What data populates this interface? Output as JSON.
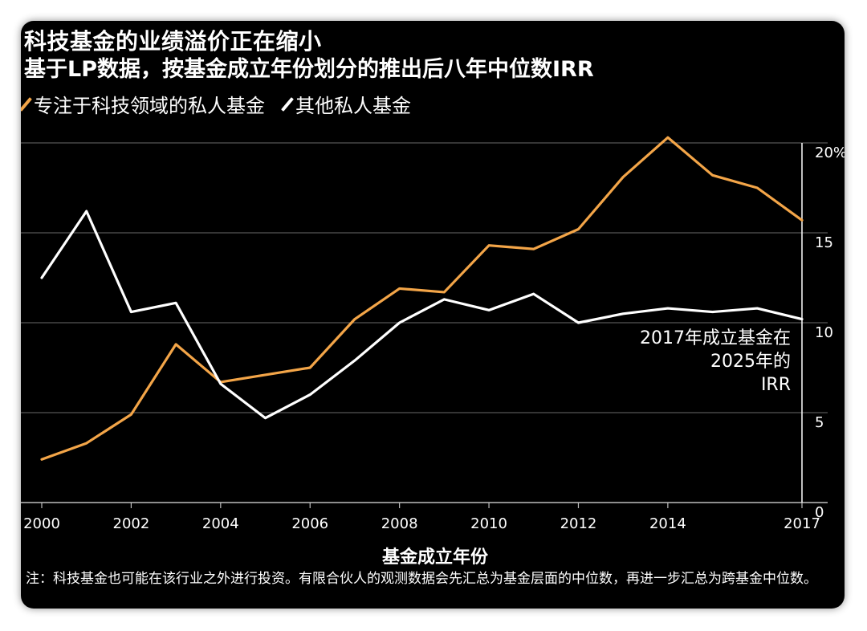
{
  "colors": {
    "tech": "#f3a548",
    "other": "#ffffff",
    "grid": "#6a6a6a",
    "background": "#000000"
  },
  "chart_data": {
    "type": "line",
    "title": "科技基金的业绩溢价正在缩小",
    "subtitle": "基于LP数据，按基金成立年份划分的推出后八年中位数IRR",
    "xlabel": "基金成立年份",
    "ylabel": "",
    "ylim": [
      0,
      20
    ],
    "xlim": [
      2000,
      2017
    ],
    "grid": true,
    "legend_position": "top-left",
    "x": [
      2000,
      2001,
      2002,
      2003,
      2004,
      2005,
      2006,
      2007,
      2008,
      2009,
      2010,
      2011,
      2012,
      2013,
      2014,
      2015,
      2016,
      2017
    ],
    "x_tick_labels": [
      "2000",
      "2002",
      "2004",
      "2006",
      "2008",
      "2010",
      "2012",
      "2014",
      "2017"
    ],
    "x_tick_values": [
      2000,
      2002,
      2004,
      2006,
      2008,
      2010,
      2012,
      2014,
      2017
    ],
    "y_tick_labels": [
      "0",
      "5",
      "10",
      "15",
      "20%"
    ],
    "y_tick_values": [
      0,
      5,
      10,
      15,
      20
    ],
    "series": [
      {
        "name": "专注于科技领域的私人基金",
        "color": "#f3a548",
        "values": [
          2.4,
          3.3,
          4.9,
          8.8,
          6.7,
          7.1,
          7.5,
          10.2,
          11.9,
          11.7,
          14.3,
          14.1,
          15.2,
          18.1,
          20.3,
          18.2,
          17.5,
          15.7
        ]
      },
      {
        "name": "其他私人基金",
        "color": "#ffffff",
        "values": [
          12.5,
          16.2,
          10.6,
          11.1,
          6.6,
          4.7,
          6.0,
          7.9,
          10.0,
          11.3,
          10.7,
          11.6,
          10.0,
          10.5,
          10.8,
          10.6,
          10.8,
          10.2
        ]
      }
    ],
    "annotation": [
      "2017年成立基金在",
      "2025年的",
      "IRR"
    ]
  },
  "note": "注：科技基金也可能在该行业之外进行投资。有限合伙人的观测数据会先汇总为基金层面的中位数，再进一步汇总为跨基金中位数。"
}
